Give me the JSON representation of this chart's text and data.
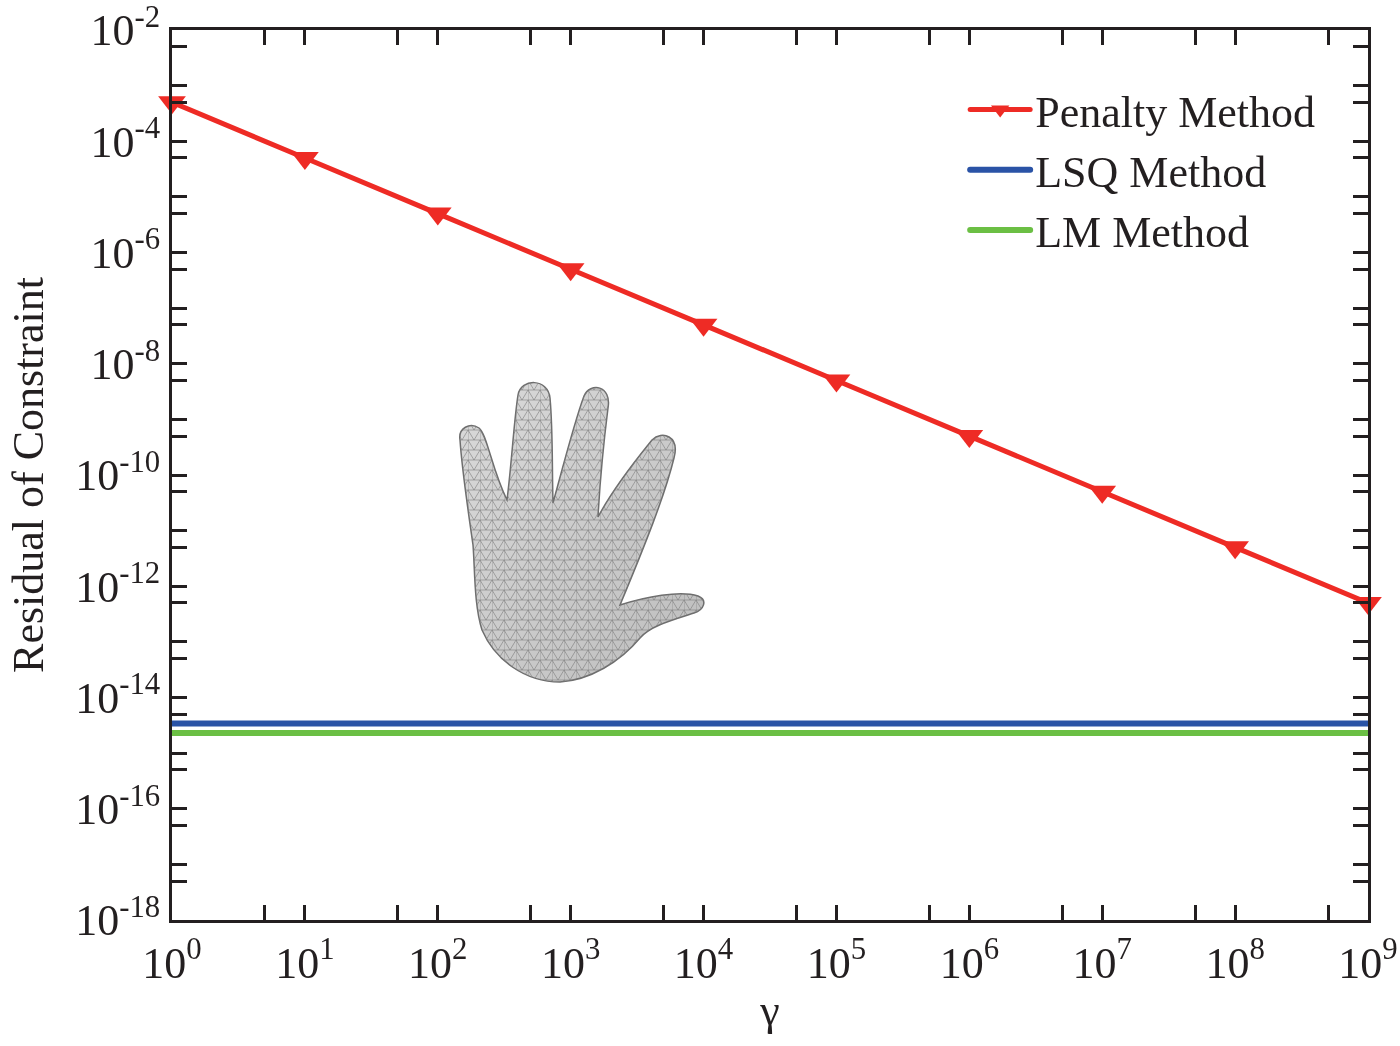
{
  "chart_data": {
    "type": "line",
    "xlabel": "γ",
    "ylabel": "Residual of Constraint",
    "log": "xy",
    "legend": "top right",
    "xlim": [
      1,
      1000000000.0
    ],
    "ylim": [
      1e-18,
      0.01
    ],
    "xticks": [
      {
        "value": 1,
        "label": "10$^{0}$"
      },
      {
        "value": 5,
        "label": null
      },
      {
        "value": 10,
        "label": "10$^{1}$"
      },
      {
        "value": 50,
        "label": null
      },
      {
        "value": 100,
        "label": "10$^{2}$"
      },
      {
        "value": 500,
        "label": null
      },
      {
        "value": 1000,
        "label": "10$^{3}$"
      },
      {
        "value": 5000,
        "label": null
      },
      {
        "value": 10000,
        "label": "10$^{4}$"
      },
      {
        "value": 50000,
        "label": null
      },
      {
        "value": 100000,
        "label": "10$^{5}$"
      },
      {
        "value": 500000,
        "label": null
      },
      {
        "value": 1000000,
        "label": "10$^{6}$"
      },
      {
        "value": 5000000,
        "label": null
      },
      {
        "value": 10000000,
        "label": "10$^{7}$"
      },
      {
        "value": 50000000,
        "label": null
      },
      {
        "value": 100000000,
        "label": "10$^{8}$"
      },
      {
        "value": 500000000,
        "label": null
      },
      {
        "value": 1000000000,
        "label": "10$^{9}$"
      }
    ],
    "yticks": [
      {
        "value": 1e-18,
        "label": "10$^{-18}$"
      },
      {
        "value": 5e-18,
        "label": null
      },
      {
        "value": 1e-17,
        "label": null
      },
      {
        "value": 5e-17,
        "label": null
      },
      {
        "value": 1e-16,
        "label": "10$^{-16}$"
      },
      {
        "value": 5e-16,
        "label": null
      },
      {
        "value": 1e-15,
        "label": null
      },
      {
        "value": 5e-15,
        "label": null
      },
      {
        "value": 1e-14,
        "label": "10$^{-14}$"
      },
      {
        "value": 5e-14,
        "label": null
      },
      {
        "value": 1e-13,
        "label": null
      },
      {
        "value": 5e-13,
        "label": null
      },
      {
        "value": 1e-12,
        "label": "10$^{-12}$"
      },
      {
        "value": 5e-12,
        "label": null
      },
      {
        "value": 1e-11,
        "label": null
      },
      {
        "value": 5e-11,
        "label": null
      },
      {
        "value": 1e-10,
        "label": "10$^{-10}$"
      },
      {
        "value": 5e-10,
        "label": null
      },
      {
        "value": 1e-09,
        "label": null
      },
      {
        "value": 5e-09,
        "label": null
      },
      {
        "value": 1e-08,
        "label": "10$^{-8}$"
      },
      {
        "value": 5e-08,
        "label": null
      },
      {
        "value": 1e-07,
        "label": null
      },
      {
        "value": 5e-07,
        "label": null
      },
      {
        "value": 1e-06,
        "label": "10$^{-6}$"
      },
      {
        "value": 5e-06,
        "label": null
      },
      {
        "value": 1e-05,
        "label": null
      },
      {
        "value": 5e-05,
        "label": null
      },
      {
        "value": 0.0001,
        "label": "10$^{-4}$"
      },
      {
        "value": 0.0005,
        "label": null
      },
      {
        "value": 0.001,
        "label": null
      },
      {
        "value": 0.005,
        "label": null
      },
      {
        "value": 0.01,
        "label": "10$^{-2}$"
      }
    ],
    "series": [
      {
        "name": "Penalty Method",
        "color": "#ee2b25",
        "marker": "triangle",
        "line_style": "solid",
        "x": [
          1,
          10,
          100,
          1000,
          10000,
          100000,
          1000000,
          10000000,
          100000000,
          1000000000
        ],
        "values": [
          0.0005,
          5e-05,
          5e-06,
          5e-07,
          5e-08,
          5e-09,
          5e-10,
          5e-11,
          5e-12,
          5e-13
        ]
      },
      {
        "name": "LSQ Method",
        "color": "#2a53a6",
        "marker": "none",
        "line_style": "solid",
        "x": [
          1,
          1000000000
        ],
        "values": [
          3.4e-15,
          3.4e-15
        ]
      },
      {
        "name": "LM Method",
        "color": "#6bbf44",
        "marker": "none",
        "line_style": "solid",
        "x": [
          1,
          1000000000
        ],
        "values": [
          2.3e-15,
          2.3e-15
        ]
      }
    ]
  }
}
